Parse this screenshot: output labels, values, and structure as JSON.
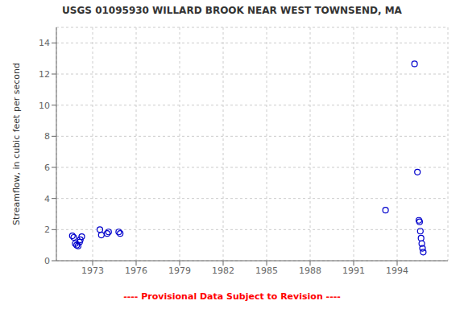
{
  "chart_data": {
    "type": "scatter",
    "title": "USGS 01095930 WILLARD BROOK NEAR WEST TOWNSEND, MA",
    "ylabel": "Streamflow, in cubic feet per second",
    "annotations": [
      {
        "text": "---- Provisional Data Subject to Revision ----",
        "color": "red"
      }
    ],
    "x": [
      1971.6,
      1971.7,
      1971.8,
      1971.9,
      1972.0,
      1972.1,
      1972.15,
      1972.25,
      1973.5,
      1973.6,
      1974.0,
      1974.1,
      1974.8,
      1974.9,
      1993.2,
      1995.2,
      1995.4,
      1995.5,
      1995.55,
      1995.6,
      1995.65,
      1995.7,
      1995.75,
      1995.8
    ],
    "values": [
      1.6,
      1.5,
      1.1,
      1.0,
      0.95,
      1.2,
      1.35,
      1.55,
      2.0,
      1.65,
      1.75,
      1.85,
      1.85,
      1.75,
      3.25,
      12.65,
      5.7,
      2.6,
      2.5,
      1.9,
      1.45,
      1.1,
      0.8,
      0.55
    ],
    "color": "#0000cc",
    "marker": "open_circle",
    "xlim": [
      1970.5,
      1997.5
    ],
    "ylim": [
      0,
      15
    ],
    "xticks": [
      1973,
      1976,
      1979,
      1982,
      1985,
      1988,
      1991,
      1994
    ],
    "yticks": [
      0,
      2,
      4,
      6,
      8,
      10,
      12,
      14
    ],
    "grid": true
  }
}
